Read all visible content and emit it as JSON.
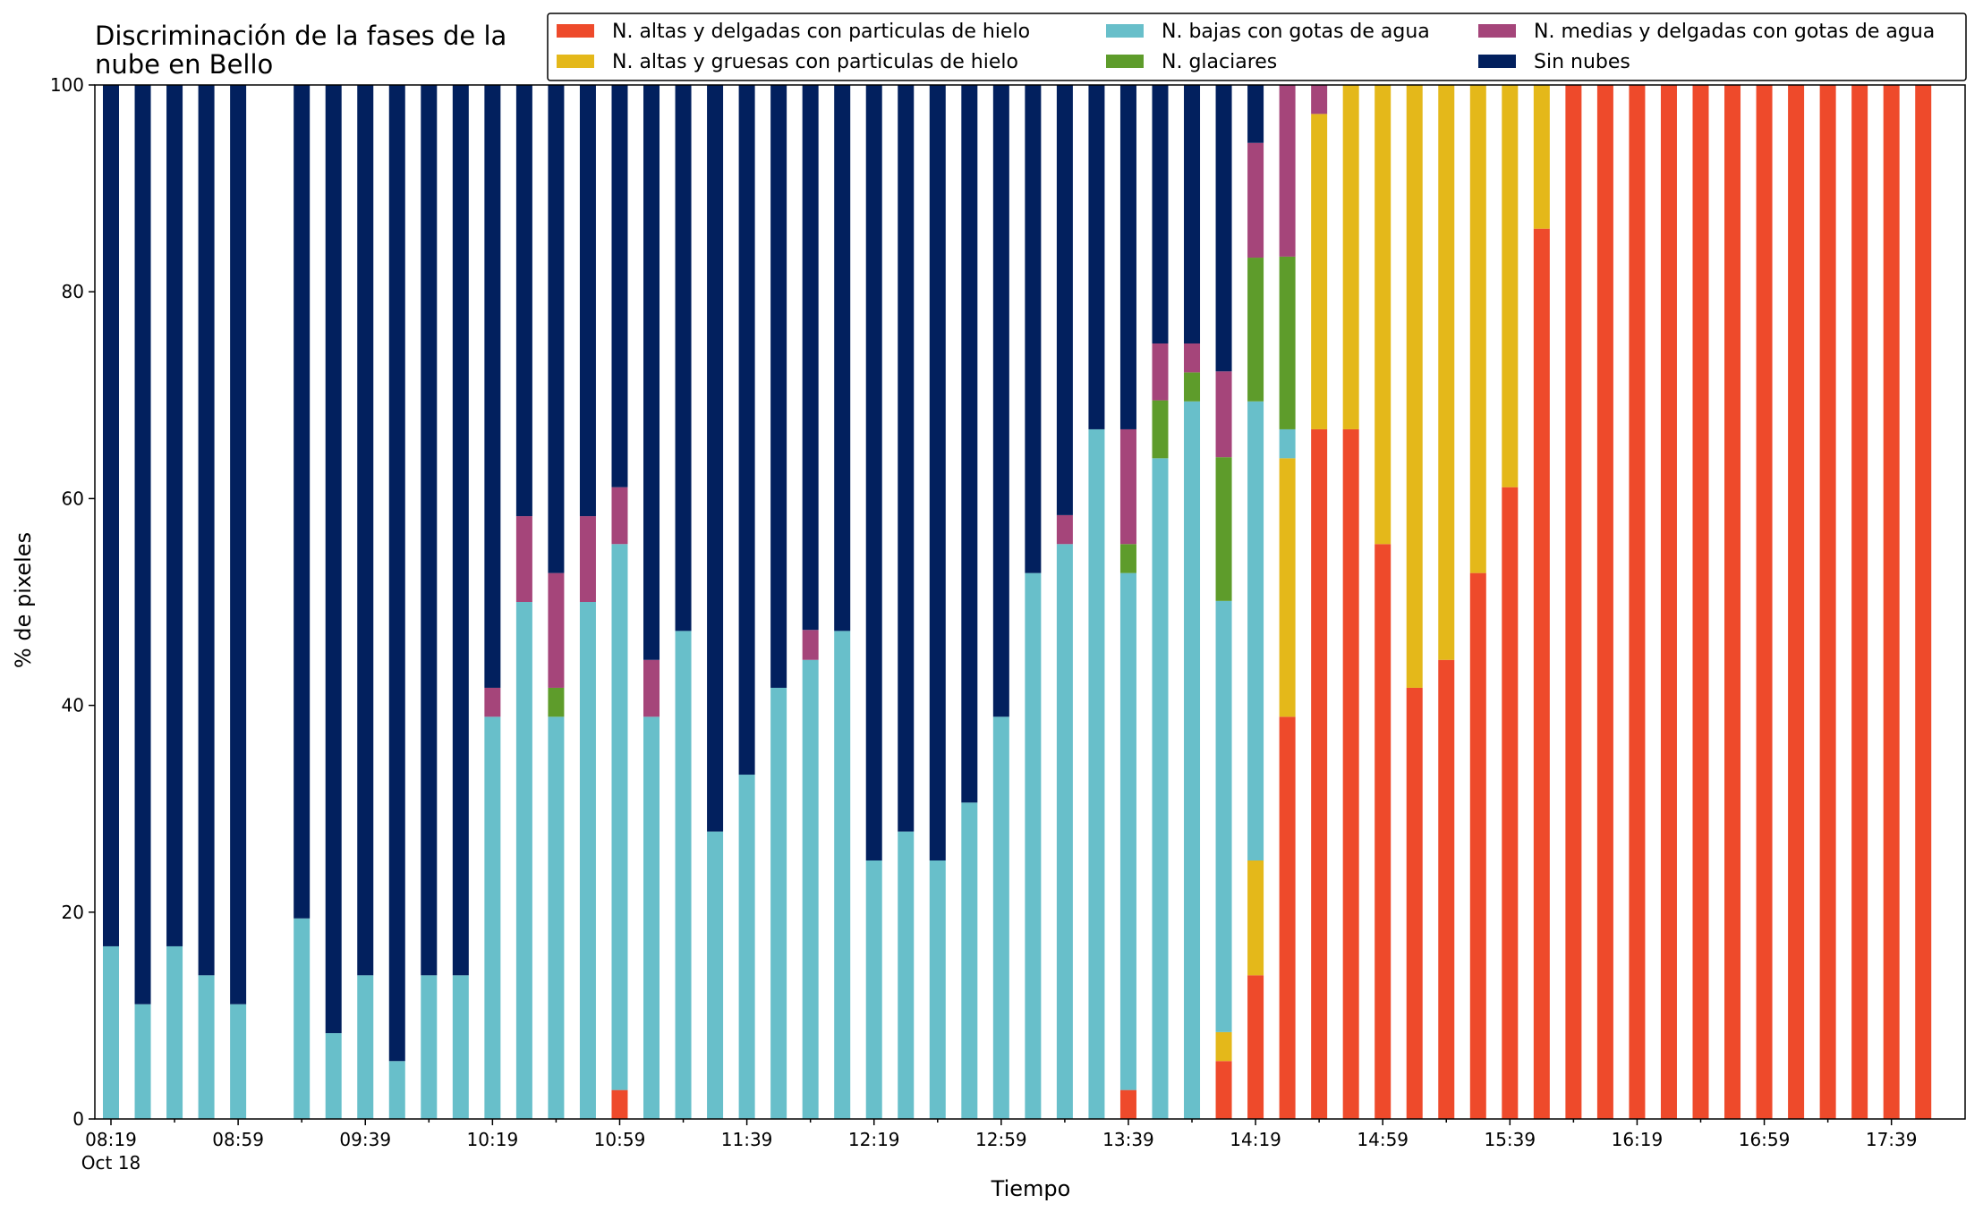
{
  "chart_data": {
    "type": "bar",
    "stacked": true,
    "title": "Discriminación de la fases de la\nnube en Bello",
    "xlabel": "Tiempo",
    "ylabel": "% de pixeles",
    "ylim": [
      0,
      100
    ],
    "yticks": [
      0,
      20,
      40,
      60,
      80,
      100
    ],
    "grid": false,
    "legend_position": "top-right",
    "legend_columns": 3,
    "x_tick_labels": [
      "08:19",
      "08:59",
      "09:39",
      "10:19",
      "10:59",
      "11:39",
      "12:19",
      "12:59",
      "13:39",
      "14:19",
      "14:59",
      "15:39",
      "16:19",
      "16:59",
      "17:39"
    ],
    "x_date_label": "Oct 18",
    "times": [
      "08:19",
      "08:29",
      "08:39",
      "08:49",
      "08:59",
      "09:09",
      "09:19",
      "09:29",
      "09:39",
      "09:49",
      "09:59",
      "10:09",
      "10:19",
      "10:29",
      "10:39",
      "10:49",
      "10:59",
      "11:09",
      "11:19",
      "11:29",
      "11:39",
      "11:49",
      "11:59",
      "12:09",
      "12:19",
      "12:29",
      "12:39",
      "12:49",
      "12:59",
      "13:09",
      "13:19",
      "13:29",
      "13:39",
      "13:49",
      "13:59",
      "14:09",
      "14:19",
      "14:29",
      "14:39",
      "14:49",
      "14:59",
      "15:09",
      "15:19",
      "15:29",
      "15:39",
      "15:49",
      "15:59",
      "16:09",
      "16:19",
      "16:29",
      "16:39",
      "16:49",
      "16:59",
      "17:09",
      "17:19",
      "17:29",
      "17:39",
      "17:49"
    ],
    "legend_order": [
      "altas_delgadas",
      "altas_gruesas",
      "bajas",
      "glaciares",
      "medias",
      "sin_nubes"
    ],
    "stack_order": [
      "altas_delgadas",
      "altas_gruesas",
      "bajas",
      "glaciares",
      "medias",
      "sin_nubes"
    ],
    "series": [
      {
        "key": "altas_delgadas",
        "name": "N. altas y delgadas con particulas de hielo",
        "color": "#ee4a2b",
        "values": [
          0,
          0,
          0,
          0,
          0,
          0,
          0,
          0,
          0,
          0,
          0,
          0,
          0,
          0,
          0,
          0,
          2.8,
          0,
          0,
          0,
          0,
          0,
          0,
          0,
          0,
          0,
          0,
          0,
          0,
          0,
          0,
          0,
          2.8,
          0,
          0,
          5.6,
          13.9,
          38.9,
          66.7,
          66.7,
          55.6,
          41.7,
          44.4,
          52.8,
          61.1,
          86.1,
          100,
          100,
          100,
          100,
          100,
          100,
          100,
          100,
          100,
          100,
          100,
          100
        ]
      },
      {
        "key": "altas_gruesas",
        "name": "N. altas y gruesas con particulas de hielo",
        "color": "#e4b81a",
        "values": [
          0,
          0,
          0,
          0,
          0,
          0,
          0,
          0,
          0,
          0,
          0,
          0,
          0,
          0,
          0,
          0,
          0,
          0,
          0,
          0,
          0,
          0,
          0,
          0,
          0,
          0,
          0,
          0,
          0,
          0,
          0,
          0,
          0,
          0,
          0,
          2.8,
          11.1,
          25,
          30.5,
          33.3,
          44.4,
          58.3,
          55.6,
          47.2,
          38.9,
          13.9,
          0,
          0,
          0,
          0,
          0,
          0,
          0,
          0,
          0,
          0,
          0,
          0
        ]
      },
      {
        "key": "bajas",
        "name": "N. bajas con gotas de agua",
        "color": "#68bfca",
        "values": [
          16.7,
          11.1,
          16.7,
          13.9,
          11.1,
          0,
          19.4,
          8.3,
          13.9,
          5.6,
          13.9,
          13.9,
          38.9,
          50,
          38.9,
          50,
          52.8,
          38.9,
          47.2,
          27.8,
          33.3,
          41.7,
          44.4,
          47.2,
          25,
          27.8,
          25,
          30.6,
          38.9,
          52.8,
          55.6,
          66.7,
          50,
          63.9,
          69.4,
          41.7,
          44.4,
          2.8,
          0,
          0,
          0,
          0,
          0,
          0,
          0,
          0,
          0,
          0,
          0,
          0,
          0,
          0,
          0,
          0,
          0,
          0,
          0,
          0
        ]
      },
      {
        "key": "glaciares",
        "name": "N. glaciares",
        "color": "#5e9c2b",
        "values": [
          0,
          0,
          0,
          0,
          0,
          0,
          0,
          0,
          0,
          0,
          0,
          0,
          0,
          0,
          2.8,
          0,
          0,
          0,
          0,
          0,
          0,
          0,
          0,
          0,
          0,
          0,
          0,
          0,
          0,
          0,
          0,
          0,
          2.8,
          5.6,
          2.8,
          13.9,
          13.9,
          16.7,
          0,
          0,
          0,
          0,
          0,
          0,
          0,
          0,
          0,
          0,
          0,
          0,
          0,
          0,
          0,
          0,
          0,
          0,
          0,
          0
        ]
      },
      {
        "key": "medias",
        "name": "N. medias y delgadas con gotas de agua",
        "color": "#a5457a",
        "values": [
          0,
          0,
          0,
          0,
          0,
          0,
          0,
          0,
          0,
          0,
          0,
          0,
          2.8,
          8.3,
          11.1,
          8.3,
          5.5,
          5.5,
          0,
          0,
          0,
          0,
          2.9,
          0,
          0,
          0,
          0,
          0,
          0,
          0,
          2.8,
          0,
          11.1,
          5.5,
          2.8,
          8.3,
          11.1,
          16.6,
          2.8,
          0,
          0,
          0,
          0,
          0,
          0,
          0,
          0,
          0,
          0,
          0,
          0,
          0,
          0,
          0,
          0,
          0,
          0,
          0
        ]
      },
      {
        "key": "sin_nubes",
        "name": "Sin nubes",
        "color": "#02205e",
        "values": [
          83.3,
          88.9,
          83.3,
          86.1,
          88.9,
          0,
          80.6,
          91.7,
          86.1,
          94.4,
          86.1,
          86.1,
          58.3,
          41.7,
          47.2,
          41.7,
          38.9,
          55.6,
          52.8,
          72.2,
          66.7,
          58.3,
          52.7,
          52.8,
          75,
          72.2,
          75,
          69.4,
          61.1,
          47.2,
          41.6,
          33.3,
          33.3,
          25,
          25,
          27.7,
          5.6,
          0,
          0,
          0,
          0,
          0,
          0,
          0,
          0,
          0,
          0,
          0,
          0,
          0,
          0,
          0,
          0,
          0,
          0,
          0,
          0,
          0
        ]
      }
    ]
  }
}
